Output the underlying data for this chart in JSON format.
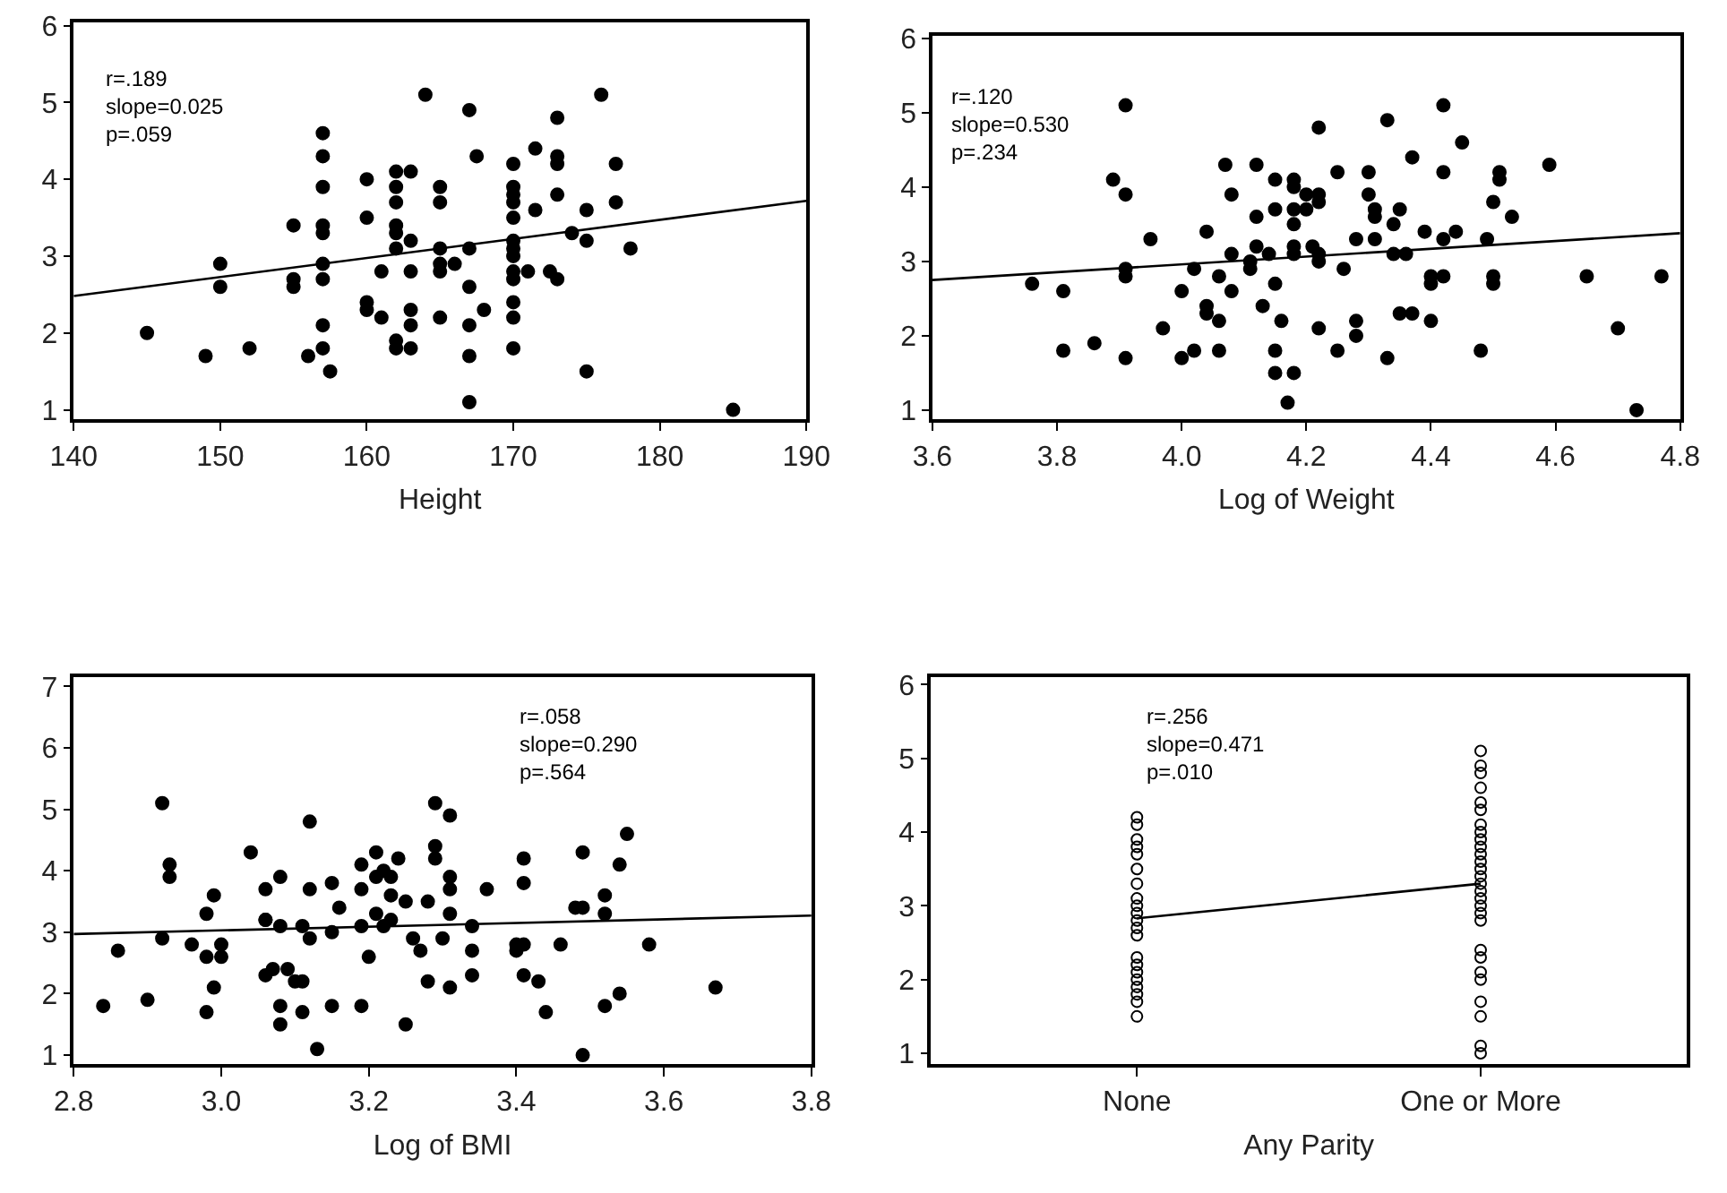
{
  "chart_data": [
    {
      "type": "scatter",
      "xlabel": "Height",
      "xlim": [
        140,
        190
      ],
      "xticks": [
        140,
        150,
        160,
        170,
        180,
        190
      ],
      "ylim": [
        0.88,
        6.04
      ],
      "yticks": [
        1,
        2,
        3,
        4,
        5,
        6
      ],
      "marker": "circle",
      "annotations": [
        "r=.189",
        "slope=0.025",
        "p=.059"
      ],
      "series": [
        {
          "color": "#000000",
          "x": [
            145,
            149,
            150,
            150,
            152,
            155,
            155,
            155,
            156,
            157,
            157,
            157,
            157,
            157,
            157,
            157,
            157,
            157,
            157.5,
            160,
            160,
            160,
            160,
            161,
            161,
            162,
            162,
            162,
            162,
            162,
            162,
            162,
            162,
            163,
            163,
            163,
            163,
            163,
            163,
            164,
            165,
            165,
            165,
            165,
            165,
            165,
            166,
            167,
            167,
            167,
            167,
            167,
            167,
            167.5,
            168,
            170,
            170,
            170,
            170,
            170,
            170,
            170,
            170,
            170,
            170,
            170,
            170,
            170,
            171,
            171.5,
            171.5,
            172.5,
            173,
            173,
            173,
            173,
            173,
            174,
            175,
            175,
            175,
            176,
            177,
            177,
            178,
            185
          ],
          "values": [
            2.0,
            1.7,
            2.9,
            2.6,
            1.8,
            3.4,
            2.7,
            2.6,
            1.7,
            4.6,
            4.3,
            3.9,
            3.4,
            3.3,
            2.9,
            2.7,
            2.1,
            1.8,
            1.5,
            4.0,
            3.5,
            2.4,
            2.3,
            2.8,
            2.2,
            4.1,
            3.9,
            3.7,
            3.4,
            3.3,
            3.1,
            1.9,
            1.8,
            4.1,
            3.2,
            2.8,
            2.3,
            2.1,
            1.8,
            5.1,
            3.9,
            3.7,
            3.1,
            2.9,
            2.8,
            2.2,
            2.9,
            4.9,
            3.1,
            2.6,
            2.1,
            1.7,
            1.1,
            4.3,
            2.3,
            4.2,
            3.9,
            3.8,
            3.7,
            3.5,
            3.2,
            3.1,
            3.0,
            2.8,
            2.7,
            2.4,
            2.2,
            1.8,
            2.8,
            4.4,
            3.6,
            2.8,
            4.8,
            4.3,
            4.2,
            3.8,
            2.7,
            3.3,
            3.6,
            3.2,
            1.5,
            5.1,
            4.2,
            3.7,
            3.1,
            1.0
          ]
        },
        {
          "type": "line",
          "marker": "none",
          "color": "#000000",
          "x": [
            140,
            190
          ],
          "values": [
            2.48,
            3.72
          ]
        }
      ]
    },
    {
      "type": "scatter",
      "xlabel": "Log of Weight",
      "xlim": [
        3.6,
        4.8
      ],
      "xticks": [
        {
          "value": 3.6,
          "label": "3.6"
        },
        {
          "value": 3.8,
          "label": "3.8"
        },
        {
          "value": 4.0,
          "label": "4.0"
        },
        {
          "value": 4.2,
          "label": "4.2"
        },
        {
          "value": 4.4,
          "label": "4.4"
        },
        {
          "value": 4.6,
          "label": "4.6"
        },
        {
          "value": 4.8,
          "label": "4.8"
        }
      ],
      "ylim": [
        0.88,
        6.04
      ],
      "yticks": [
        1,
        2,
        3,
        4,
        5,
        6
      ],
      "marker": "circle",
      "annotations": [
        "r=.120",
        "slope=0.530",
        "p=.234"
      ],
      "series": [
        {
          "color": "#000000",
          "x": [
            3.76,
            3.81,
            3.81,
            3.86,
            3.89,
            3.91,
            3.91,
            3.91,
            3.91,
            3.91,
            3.95,
            3.97,
            4.0,
            4.0,
            4.02,
            4.02,
            4.04,
            4.04,
            4.04,
            4.06,
            4.06,
            4.06,
            4.07,
            4.08,
            4.08,
            4.08,
            4.11,
            4.11,
            4.12,
            4.12,
            4.12,
            4.13,
            4.14,
            4.15,
            4.15,
            4.15,
            4.15,
            4.15,
            4.16,
            4.17,
            4.18,
            4.18,
            4.18,
            4.18,
            4.18,
            4.18,
            4.18,
            4.2,
            4.2,
            4.21,
            4.22,
            4.22,
            4.22,
            4.22,
            4.22,
            4.22,
            4.25,
            4.25,
            4.26,
            4.28,
            4.28,
            4.28,
            4.3,
            4.3,
            4.31,
            4.31,
            4.31,
            4.33,
            4.33,
            4.34,
            4.34,
            4.35,
            4.35,
            4.36,
            4.37,
            4.37,
            4.39,
            4.4,
            4.4,
            4.4,
            4.42,
            4.42,
            4.42,
            4.42,
            4.44,
            4.45,
            4.48,
            4.49,
            4.5,
            4.5,
            4.5,
            4.51,
            4.51,
            4.53,
            4.59,
            4.65,
            4.7,
            4.73,
            4.77
          ],
          "values": [
            2.7,
            2.6,
            1.8,
            1.9,
            4.1,
            3.9,
            5.1,
            2.9,
            2.8,
            1.7,
            3.3,
            2.1,
            2.6,
            1.7,
            2.9,
            1.8,
            3.4,
            2.4,
            2.3,
            2.8,
            2.2,
            1.8,
            4.3,
            3.1,
            2.6,
            3.9,
            3.0,
            2.9,
            4.3,
            3.6,
            3.2,
            2.4,
            3.1,
            4.1,
            3.7,
            2.7,
            1.8,
            1.5,
            2.2,
            1.1,
            4.0,
            3.7,
            4.1,
            3.2,
            3.1,
            1.5,
            3.5,
            3.7,
            3.9,
            3.2,
            4.8,
            3.8,
            3.0,
            2.1,
            3.9,
            3.1,
            4.2,
            1.8,
            2.9,
            3.3,
            2.2,
            2.0,
            4.2,
            3.9,
            3.7,
            3.6,
            3.3,
            1.7,
            4.9,
            3.5,
            3.1,
            3.7,
            2.3,
            3.1,
            4.4,
            2.3,
            3.4,
            2.8,
            2.7,
            2.2,
            3.3,
            5.1,
            4.2,
            2.8,
            3.4,
            4.6,
            1.8,
            3.3,
            2.7,
            3.8,
            2.8,
            4.2,
            4.1,
            3.6,
            4.3,
            2.8,
            2.1,
            1.0,
            2.8
          ]
        },
        {
          "type": "line",
          "marker": "none",
          "color": "#000000",
          "x": [
            3.6,
            4.8
          ],
          "values": [
            2.75,
            3.38
          ]
        }
      ]
    },
    {
      "type": "scatter",
      "xlabel": "Log of BMI",
      "xlim": [
        2.8,
        3.8
      ],
      "xticks": [
        {
          "value": 2.8,
          "label": "2.8"
        },
        {
          "value": 3.0,
          "label": "3.0"
        },
        {
          "value": 3.2,
          "label": "3.2"
        },
        {
          "value": 3.4,
          "label": "3.4"
        },
        {
          "value": 3.6,
          "label": "3.6"
        },
        {
          "value": 3.8,
          "label": "3.8"
        }
      ],
      "ylim": [
        0.85,
        7.15
      ],
      "yticks": [
        1,
        2,
        3,
        4,
        5,
        6,
        7
      ],
      "marker": "circle",
      "annotations": [
        "r=.058",
        "slope=0.290",
        "p=.564"
      ],
      "series": [
        {
          "color": "#000000",
          "x": [
            2.84,
            2.86,
            2.9,
            2.92,
            2.92,
            2.93,
            2.93,
            2.96,
            2.98,
            2.98,
            2.98,
            2.99,
            2.99,
            3.0,
            3.0,
            3.04,
            3.06,
            3.06,
            3.06,
            3.06,
            3.07,
            3.08,
            3.08,
            3.08,
            3.08,
            3.09,
            3.1,
            3.11,
            3.11,
            3.11,
            3.12,
            3.12,
            3.12,
            3.13,
            3.15,
            3.15,
            3.15,
            3.16,
            3.19,
            3.19,
            3.19,
            3.19,
            3.2,
            3.21,
            3.21,
            3.21,
            3.22,
            3.22,
            3.23,
            3.23,
            3.23,
            3.24,
            3.25,
            3.25,
            3.26,
            3.27,
            3.28,
            3.28,
            3.29,
            3.29,
            3.29,
            3.3,
            3.31,
            3.31,
            3.31,
            3.31,
            3.31,
            3.34,
            3.34,
            3.34,
            3.36,
            3.4,
            3.4,
            3.41,
            3.41,
            3.41,
            3.41,
            3.43,
            3.44,
            3.46,
            3.48,
            3.49,
            3.49,
            3.49,
            3.52,
            3.52,
            3.52,
            3.54,
            3.54,
            3.55,
            3.58,
            3.67
          ],
          "values": [
            1.8,
            2.7,
            1.9,
            2.9,
            5.1,
            4.1,
            3.9,
            2.8,
            3.3,
            2.6,
            1.7,
            3.6,
            2.1,
            2.8,
            2.6,
            4.3,
            3.2,
            2.3,
            3.7,
            3.2,
            2.4,
            3.9,
            3.1,
            1.8,
            1.5,
            2.4,
            2.2,
            3.1,
            2.2,
            1.7,
            3.7,
            2.9,
            4.8,
            1.1,
            3.8,
            3.0,
            1.8,
            3.4,
            4.1,
            3.7,
            1.8,
            3.1,
            2.6,
            4.3,
            3.9,
            3.3,
            3.1,
            4.0,
            3.9,
            3.6,
            3.2,
            4.2,
            3.5,
            1.5,
            2.9,
            2.7,
            3.5,
            2.2,
            4.2,
            5.1,
            4.4,
            2.9,
            3.7,
            2.1,
            3.9,
            4.9,
            3.3,
            3.1,
            2.7,
            2.3,
            3.7,
            2.8,
            2.7,
            2.8,
            4.2,
            3.8,
            2.3,
            2.2,
            1.7,
            2.8,
            3.4,
            3.4,
            4.3,
            1.0,
            1.8,
            3.3,
            3.6,
            2.0,
            4.1,
            4.6,
            2.8,
            2.1
          ]
        },
        {
          "type": "line",
          "marker": "none",
          "color": "#000000",
          "x": [
            2.8,
            3.8
          ],
          "values": [
            2.97,
            3.27
          ]
        }
      ]
    },
    {
      "type": "scatter",
      "xlabel": "Any Parity",
      "categories": [
        "None",
        "One or More"
      ],
      "ylim": [
        0.85,
        6.1
      ],
      "yticks": [
        1,
        2,
        3,
        4,
        5,
        6
      ],
      "marker": "circle",
      "annotations": [
        "r=.256",
        "slope=0.471",
        "p=.010"
      ],
      "series": [
        {
          "color": "#000000",
          "x": [
            "None",
            "None",
            "None",
            "None",
            "None",
            "None",
            "None",
            "None",
            "None",
            "None",
            "None",
            "None",
            "None",
            "None",
            "None",
            "None",
            "None",
            "None",
            "None",
            "None",
            "None"
          ],
          "values": [
            4.2,
            4.1,
            3.9,
            3.8,
            3.7,
            3.5,
            3.3,
            3.1,
            3.0,
            2.9,
            2.8,
            2.7,
            2.6,
            2.3,
            2.2,
            2.1,
            2.0,
            1.9,
            1.8,
            1.7,
            1.5
          ]
        },
        {
          "color": "#000000",
          "x": [
            "One or More",
            "One or More",
            "One or More",
            "One or More",
            "One or More",
            "One or More",
            "One or More",
            "One or More",
            "One or More",
            "One or More",
            "One or More",
            "One or More",
            "One or More",
            "One or More",
            "One or More",
            "One or More",
            "One or More",
            "One or More",
            "One or More",
            "One or More",
            "One or More",
            "One or More",
            "One or More",
            "One or More",
            "One or More",
            "One or More",
            "One or More",
            "One or More"
          ],
          "values": [
            5.1,
            4.9,
            4.8,
            4.6,
            4.4,
            4.3,
            4.1,
            4.0,
            3.9,
            3.8,
            3.7,
            3.6,
            3.5,
            3.4,
            3.3,
            3.2,
            3.1,
            3.0,
            2.9,
            2.8,
            2.4,
            2.3,
            2.1,
            2.0,
            1.7,
            1.5,
            1.1,
            1.0
          ]
        },
        {
          "type": "line",
          "marker": "none",
          "color": "#000000",
          "x": [
            "None",
            "One or More"
          ],
          "values": [
            2.83,
            3.3
          ]
        }
      ]
    }
  ]
}
